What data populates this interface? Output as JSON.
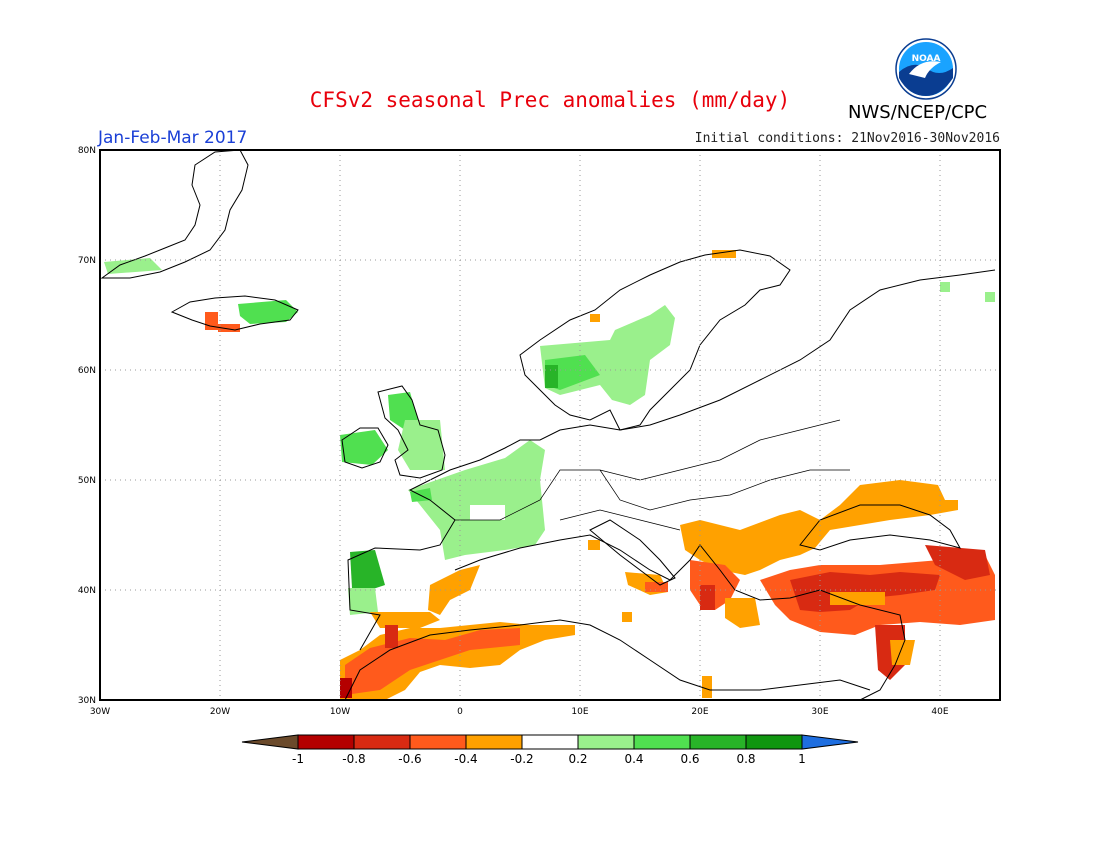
{
  "header": {
    "title": "CFSv2 seasonal Prec anomalies (mm/day)",
    "agency": "NWS/NCEP/CPC",
    "season": "Jan-Feb-Mar 2017",
    "initial_conditions": "Initial conditions: 21Nov2016-30Nov2016",
    "logo_text": "NOAA"
  },
  "map": {
    "lat_labels": [
      "80N",
      "70N",
      "60N",
      "50N",
      "40N",
      "30N"
    ],
    "lon_labels": [
      "30W",
      "20W",
      "10W",
      "0",
      "10E",
      "20E",
      "30E",
      "40E"
    ],
    "projection": "lat-lon",
    "grid": "dotted"
  },
  "legend": {
    "ticks": [
      "-1",
      "-0.8",
      "-0.6",
      "-0.4",
      "-0.2",
      "0.2",
      "0.4",
      "0.6",
      "0.8",
      "1"
    ],
    "colors": [
      "#6b4a2b",
      "#b40000",
      "#d82a12",
      "#ff5a1c",
      "#ffa100",
      "#ffffff",
      "#9af08c",
      "#50e050",
      "#28b428",
      "#109610",
      "#1e6ee0"
    ]
  },
  "colors": {
    "title": "#e8000b",
    "season": "#1a3fd6",
    "wet_light": "#9af08c",
    "wet_mid": "#50e050",
    "wet_dark": "#28b428",
    "dry_light": "#ffa100",
    "dry_mid": "#ff5a1c",
    "dry_dark": "#d82a12",
    "dry_xdark": "#b40000"
  }
}
